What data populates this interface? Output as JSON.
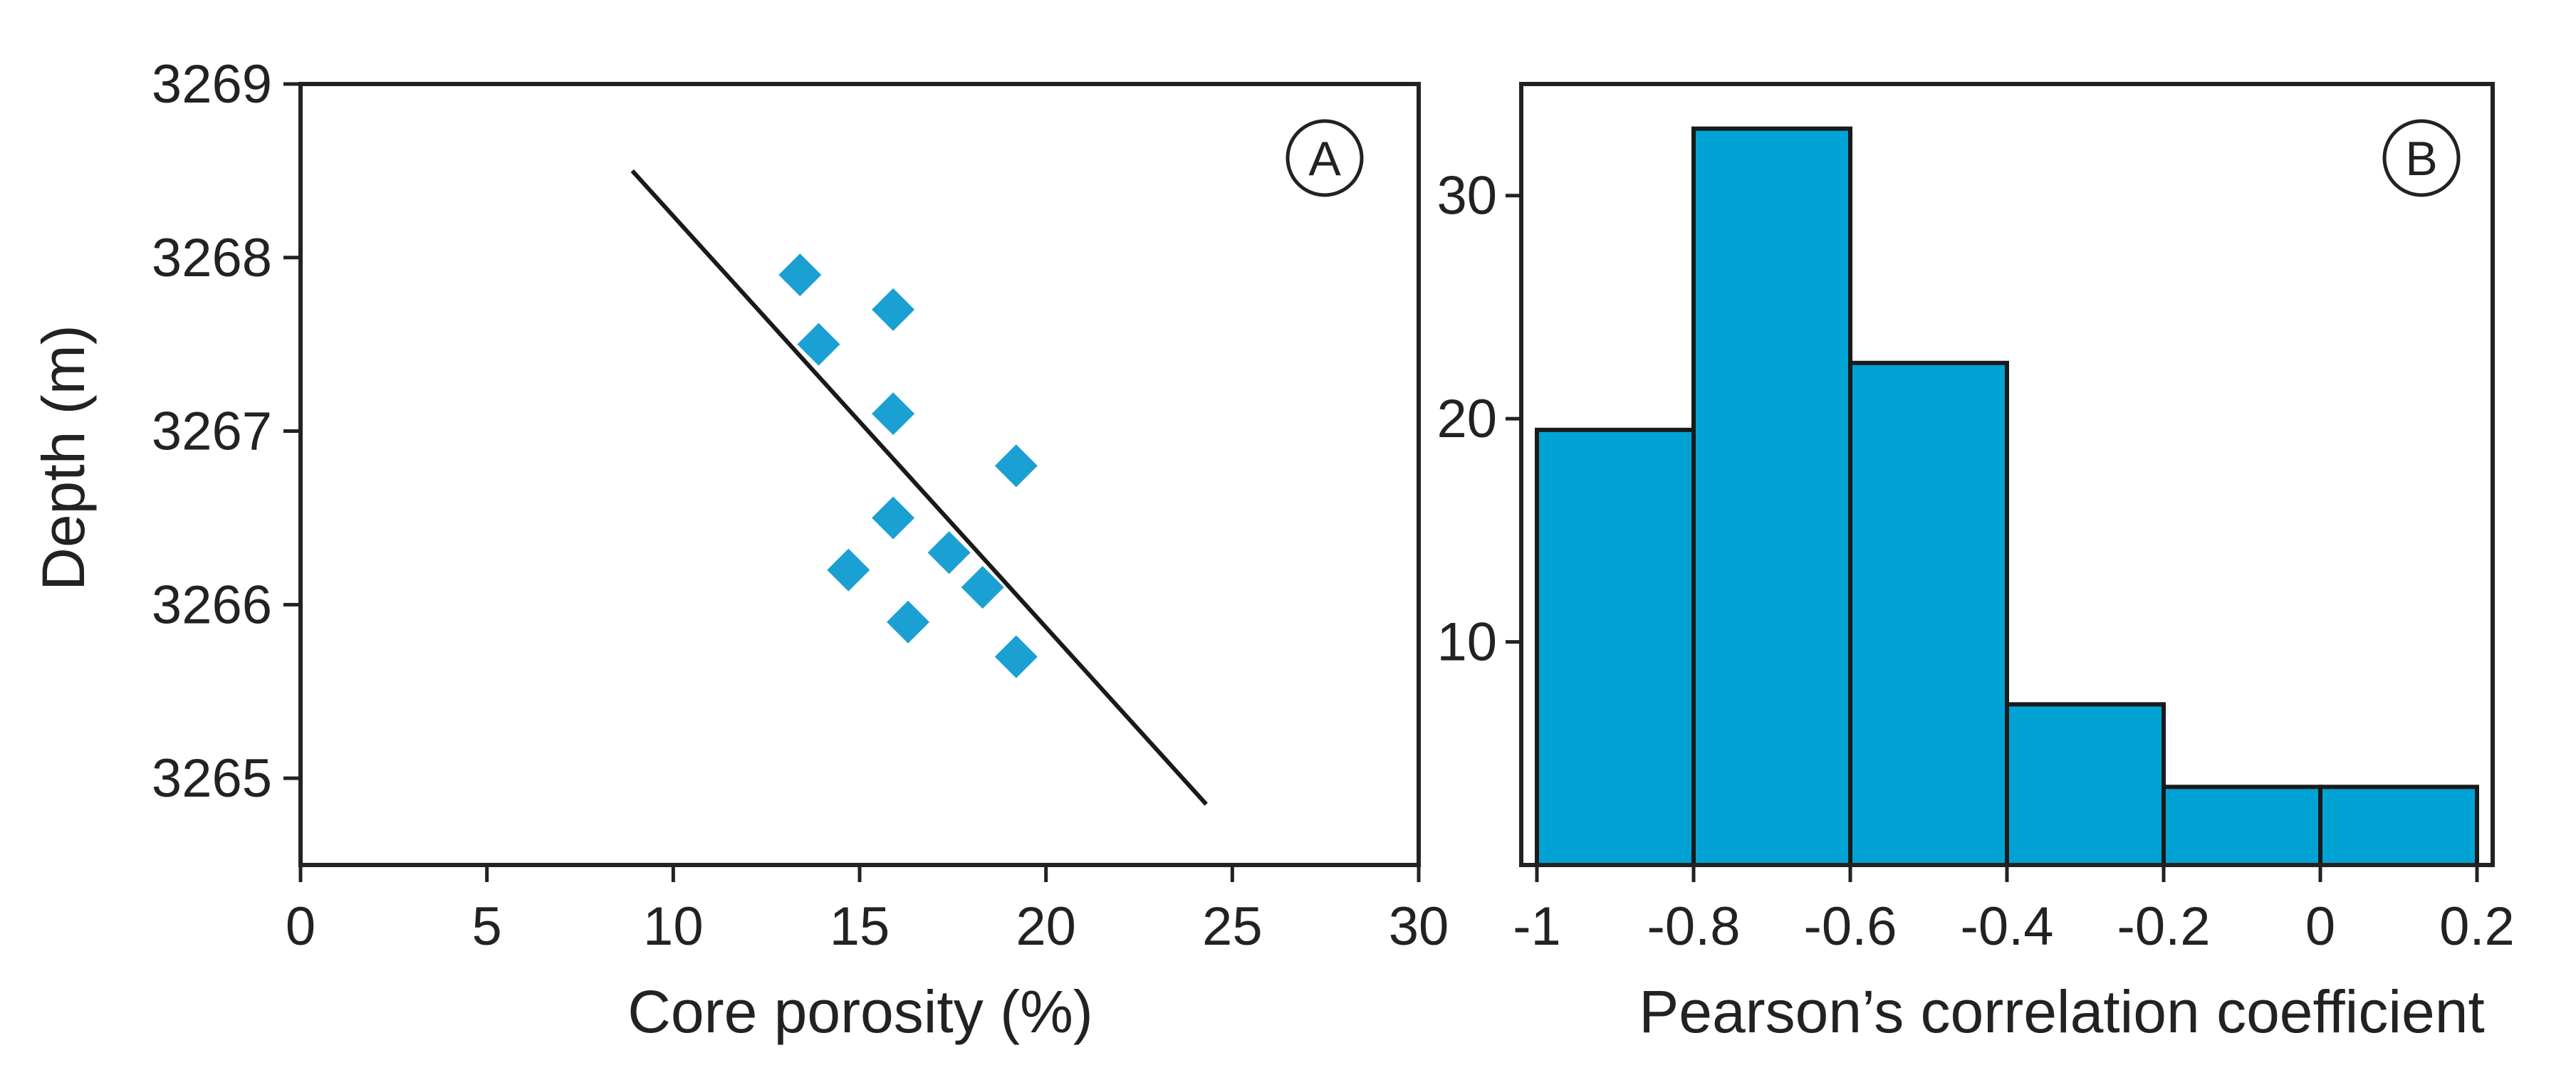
{
  "chart_data": [
    {
      "type": "scatter",
      "panel": "A",
      "xlabel": "Core porosity (%)",
      "ylabel": "Depth (m)",
      "xlim": [
        0,
        30
      ],
      "ylim": [
        3264.5,
        3269
      ],
      "xticks": [
        "0",
        "5",
        "10",
        "15",
        "20",
        "25",
        "30"
      ],
      "yticks": [
        "3265",
        "3266",
        "3267",
        "3268",
        "3269"
      ],
      "marker_color": "#1aa0d2",
      "points": [
        {
          "x": 13.4,
          "y": 3267.9
        },
        {
          "x": 15.9,
          "y": 3267.7
        },
        {
          "x": 13.9,
          "y": 3267.5
        },
        {
          "x": 15.9,
          "y": 3267.1
        },
        {
          "x": 19.2,
          "y": 3266.8
        },
        {
          "x": 15.9,
          "y": 3266.5
        },
        {
          "x": 17.4,
          "y": 3266.3
        },
        {
          "x": 14.7,
          "y": 3266.2
        },
        {
          "x": 18.3,
          "y": 3266.1
        },
        {
          "x": 16.3,
          "y": 3265.9
        },
        {
          "x": 19.2,
          "y": 3265.7
        }
      ],
      "trend_line": {
        "x": [
          8.9,
          24.3
        ],
        "y": [
          3268.5,
          3264.85
        ]
      }
    },
    {
      "type": "bar",
      "panel": "B",
      "xlabel": "Pearson’s correlation coefficient",
      "ylabel": "",
      "xlim": [
        -1.02,
        0.22
      ],
      "ylim": [
        0,
        35
      ],
      "xticks": [
        "-1",
        "-0.8",
        "-0.6",
        "-0.4",
        "-0.2",
        "0",
        "0.2"
      ],
      "yticks": [
        "10",
        "20",
        "30"
      ],
      "bar_color": "#00a3d4",
      "bins": [
        {
          "from": -1.0,
          "to": -0.8,
          "count": 19.5
        },
        {
          "from": -0.8,
          "to": -0.6,
          "count": 33
        },
        {
          "from": -0.6,
          "to": -0.4,
          "count": 22.5
        },
        {
          "from": -0.4,
          "to": -0.2,
          "count": 7.2
        },
        {
          "from": -0.2,
          "to": 0.0,
          "count": 3.5
        },
        {
          "from": 0.0,
          "to": 0.2,
          "count": 3.5
        }
      ]
    }
  ]
}
